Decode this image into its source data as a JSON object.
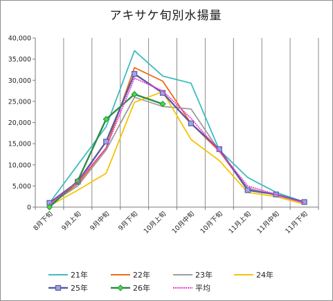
{
  "chart_data": {
    "type": "line",
    "title": "アキサケ旬別水揚量",
    "xlabel": "",
    "ylabel": "",
    "ylim": [
      0,
      40000
    ],
    "yticks": [
      "0",
      "5,000",
      "10,000",
      "15,000",
      "20,000",
      "25,000",
      "30,000",
      "35,000",
      "40,000"
    ],
    "grid": "vertical",
    "legend_position": "bottom",
    "categories": [
      "8月下旬",
      "9月上旬",
      "9月中旬",
      "9月下旬",
      "10月上旬",
      "10月中旬",
      "10月下旬",
      "11月上旬",
      "11月中旬",
      "11月下旬"
    ],
    "series": [
      {
        "name": "21年",
        "color": "#3cbcc0",
        "marker": "none",
        "values": [
          1000,
          10000,
          19000,
          37000,
          31000,
          29300,
          13500,
          7000,
          3500,
          1200
        ]
      },
      {
        "name": "22年",
        "color": "#ec6a14",
        "marker": "none",
        "values": [
          500,
          5500,
          14000,
          33000,
          29800,
          19800,
          13200,
          4200,
          3000,
          1100
        ]
      },
      {
        "name": "23年",
        "color": "#9c9c9c",
        "marker": "none",
        "values": [
          600,
          5000,
          13500,
          26000,
          23800,
          23200,
          13300,
          4500,
          2800,
          1000
        ]
      },
      {
        "name": "24年",
        "color": "#f5c400",
        "marker": "none",
        "values": [
          300,
          4000,
          8000,
          24800,
          27300,
          16000,
          11000,
          3500,
          2500,
          700
        ]
      },
      {
        "name": "25年",
        "color": "#5a5aa0",
        "marker": "square",
        "values": [
          1000,
          6000,
          15500,
          31500,
          27000,
          19800,
          13700,
          4000,
          3000,
          1200
        ]
      },
      {
        "name": "26年",
        "color": "#2c8a44",
        "marker": "diamond",
        "values": [
          0,
          6200,
          20800,
          26700,
          24400,
          null,
          null,
          null,
          null,
          null
        ]
      },
      {
        "name": "平均",
        "color": "#ee34d8",
        "marker": "none",
        "values": [
          700,
          6000,
          14000,
          30500,
          27500,
          21000,
          13300,
          5000,
          3000,
          1000
        ]
      }
    ]
  }
}
